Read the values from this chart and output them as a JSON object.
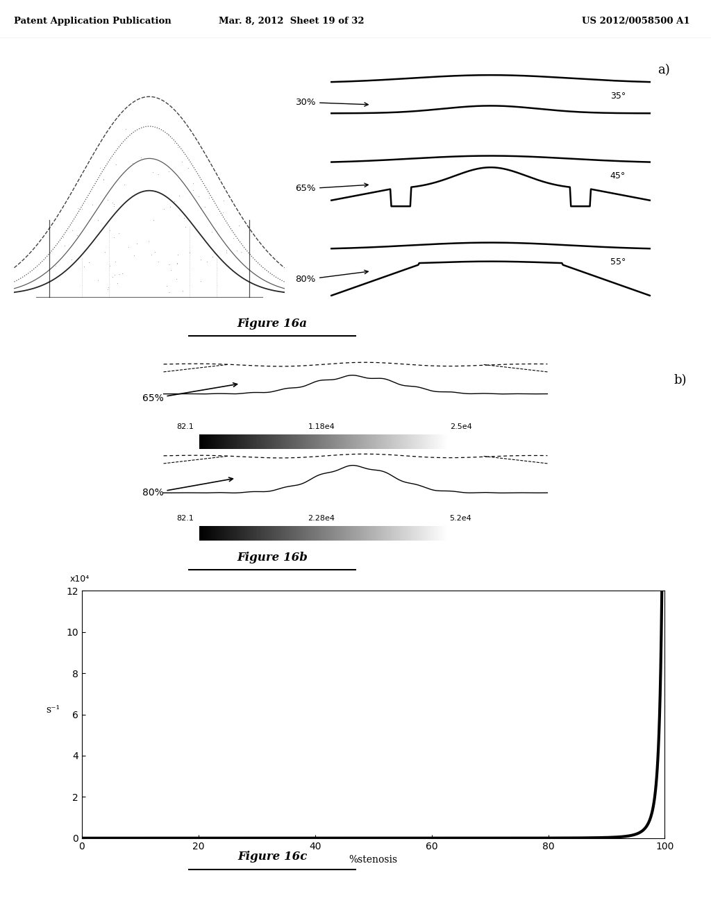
{
  "header_left": "Patent Application Publication",
  "header_mid": "Mar. 8, 2012  Sheet 19 of 32",
  "header_right": "US 2012/0058500 A1",
  "fig16a_label": "a)",
  "fig16a_caption": "Figure 16a",
  "fig16b_label": "b)",
  "fig16b_caption": "Figure 16b",
  "fig16c_caption": "Figure 16c",
  "fig16c_ylabel": "s⁻¹",
  "fig16c_xlabel": "%stenosis",
  "fig16c_ytick_label": "x10⁴",
  "fig16c_yticks": [
    0,
    2,
    4,
    6,
    8,
    10,
    12
  ],
  "fig16c_xticks": [
    0,
    20,
    40,
    60,
    80,
    100
  ],
  "colorbar_65_labels": [
    "82.1",
    "1.18e4",
    "2.5e4"
  ],
  "colorbar_80_labels": [
    "82.1",
    "2.28e4",
    "5.2e4"
  ],
  "background_color": "#ffffff",
  "fig16c_linewidth": 3.0
}
